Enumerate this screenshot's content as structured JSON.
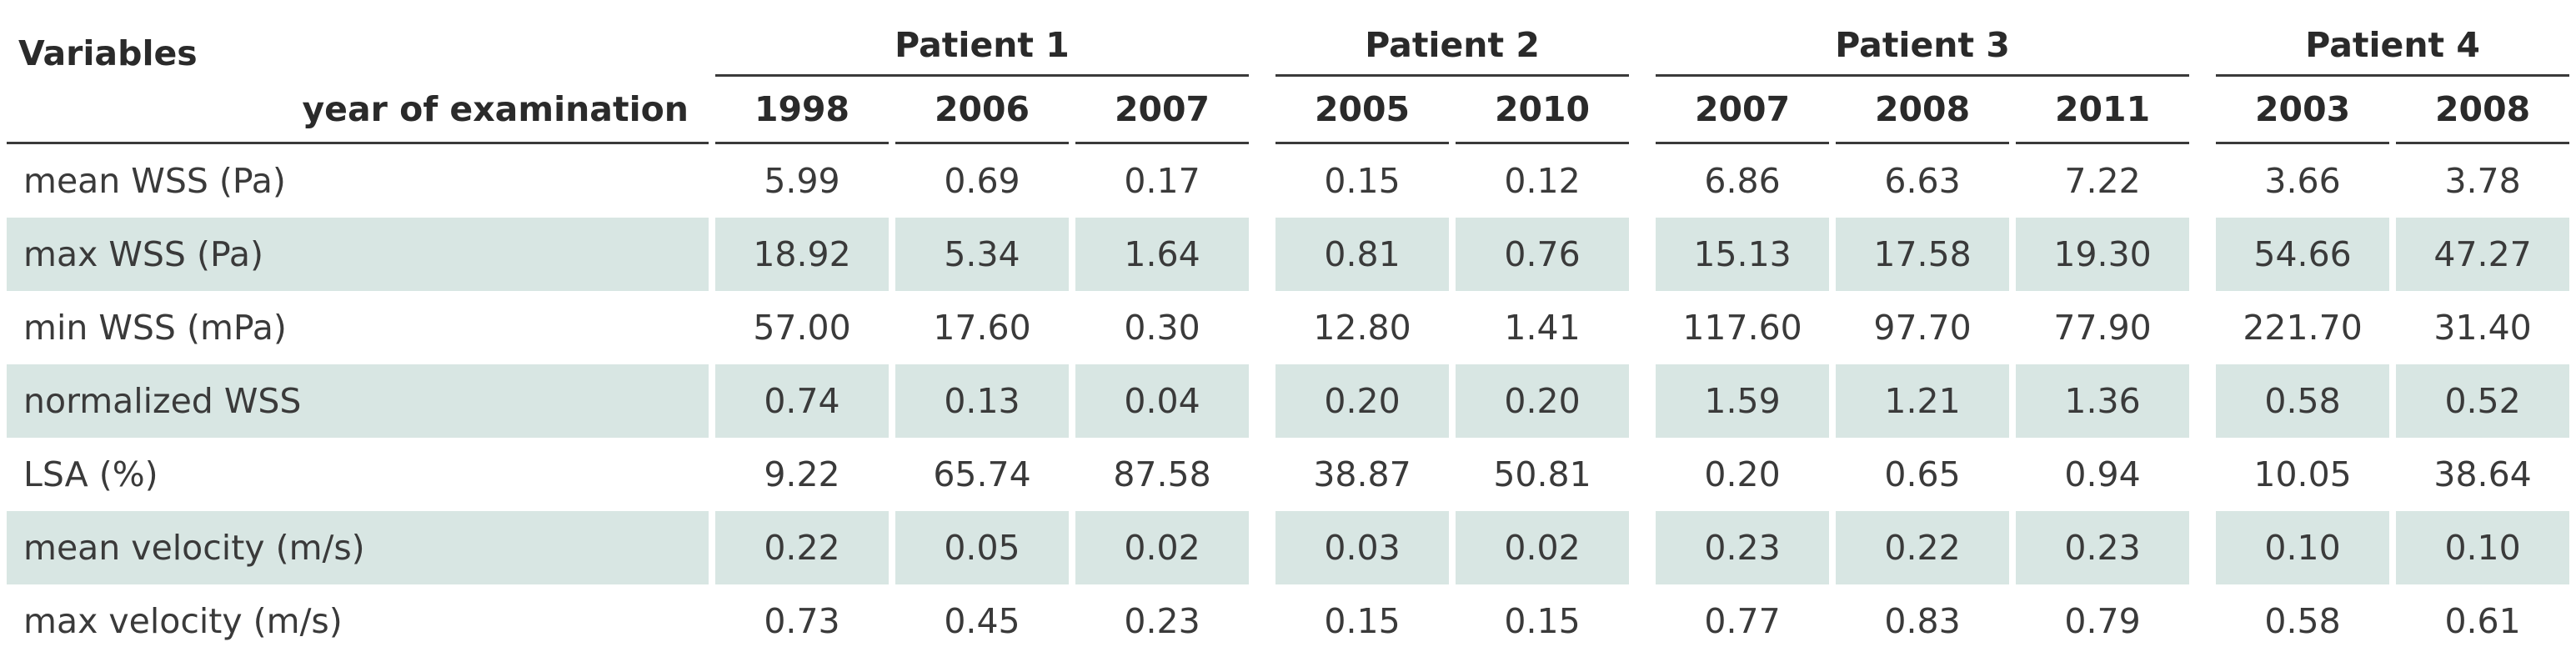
{
  "table": {
    "variables_header": "Variables",
    "year_header": "year of examination",
    "patients": [
      {
        "name": "Patient 1",
        "years": [
          "1998",
          "2006",
          "2007"
        ]
      },
      {
        "name": "Patient 2",
        "years": [
          "2005",
          "2010"
        ]
      },
      {
        "name": "Patient 3",
        "years": [
          "2007",
          "2008",
          "2011"
        ]
      },
      {
        "name": "Patient 4",
        "years": [
          "2003",
          "2008"
        ]
      }
    ],
    "rows": [
      {
        "label": "mean WSS (Pa)",
        "values": [
          "5.99",
          "0.69",
          "0.17",
          "0.15",
          "0.12",
          "6.86",
          "6.63",
          "7.22",
          "3.66",
          "3.78"
        ]
      },
      {
        "label": "max WSS (Pa)",
        "values": [
          "18.92",
          "5.34",
          "1.64",
          "0.81",
          "0.76",
          "15.13",
          "17.58",
          "19.30",
          "54.66",
          "47.27"
        ]
      },
      {
        "label": "min WSS (mPa)",
        "values": [
          "57.00",
          "17.60",
          "0.30",
          "12.80",
          "1.41",
          "117.60",
          "97.70",
          "77.90",
          "221.70",
          "31.40"
        ]
      },
      {
        "label": "normalized WSS",
        "values": [
          "0.74",
          "0.13",
          "0.04",
          "0.20",
          "0.20",
          "1.59",
          "1.21",
          "1.36",
          "0.58",
          "0.52"
        ]
      },
      {
        "label": "LSA (%)",
        "values": [
          "9.22",
          "65.74",
          "87.58",
          "38.87",
          "50.81",
          "0.20",
          "0.65",
          "0.94",
          "10.05",
          "38.64"
        ]
      },
      {
        "label": "mean velocity (m/s)",
        "values": [
          "0.22",
          "0.05",
          "0.02",
          "0.03",
          "0.02",
          "0.23",
          "0.22",
          "0.23",
          "0.10",
          "0.10"
        ]
      },
      {
        "label": "max velocity (m/s)",
        "values": [
          "0.73",
          "0.45",
          "0.23",
          "0.15",
          "0.15",
          "0.77",
          "0.83",
          "0.79",
          "0.58",
          "0.61"
        ]
      }
    ],
    "shade_color": "#d8e6e3"
  }
}
